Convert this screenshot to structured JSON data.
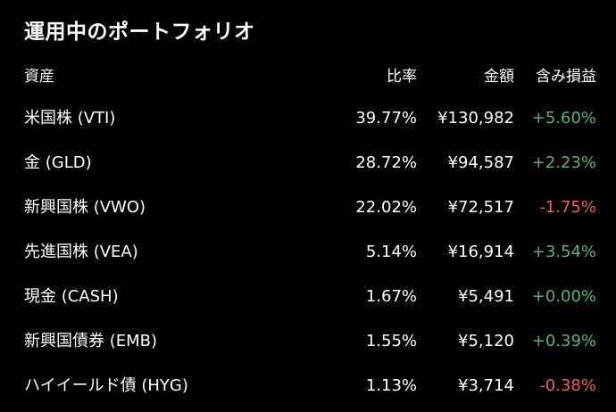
{
  "title": "運用中のポートフォリオ",
  "columns": {
    "asset": "資産",
    "ratio": "比率",
    "amount": "金額",
    "pl": "含み損益"
  },
  "rows": [
    {
      "name": "米国株 (VTI)",
      "ratio": "39.77%",
      "amount": "¥130,982",
      "pl": "+5.60%",
      "pl_sign": "pos"
    },
    {
      "name": "金 (GLD)",
      "ratio": "28.72%",
      "amount": "¥94,587",
      "pl": "+2.23%",
      "pl_sign": "pos"
    },
    {
      "name": "新興国株 (VWO)",
      "ratio": "22.02%",
      "amount": "¥72,517",
      "pl": "-1.75%",
      "pl_sign": "neg"
    },
    {
      "name": "先進国株 (VEA)",
      "ratio": "5.14%",
      "amount": "¥16,914",
      "pl": "+3.54%",
      "pl_sign": "pos"
    },
    {
      "name": "現金 (CASH)",
      "ratio": "1.67%",
      "amount": "¥5,491",
      "pl": "+0.00%",
      "pl_sign": "pos"
    },
    {
      "name": "新興国債券 (EMB)",
      "ratio": "1.55%",
      "amount": "¥5,120",
      "pl": "+0.39%",
      "pl_sign": "pos"
    },
    {
      "name": "ハイイールド債 (HYG)",
      "ratio": "1.13%",
      "amount": "¥3,714",
      "pl": "-0.38%",
      "pl_sign": "neg"
    }
  ],
  "colors": {
    "background": "#000000",
    "text": "#ffffff",
    "positive": "#5db075",
    "negative": "#e8615a"
  }
}
